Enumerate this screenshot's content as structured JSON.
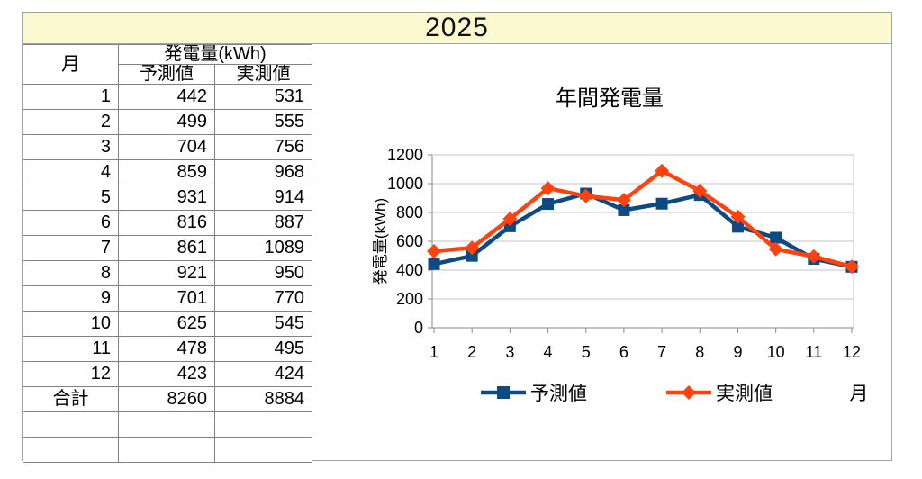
{
  "title": "2025",
  "table": {
    "header": {
      "month": "月",
      "group": "発電量(kWh)",
      "forecast": "予測値",
      "actual": "実測値"
    },
    "rows": [
      [
        "1",
        "442",
        "531"
      ],
      [
        "2",
        "499",
        "555"
      ],
      [
        "3",
        "704",
        "756"
      ],
      [
        "4",
        "859",
        "968"
      ],
      [
        "5",
        "931",
        "914"
      ],
      [
        "6",
        "816",
        "887"
      ],
      [
        "7",
        "861",
        "1089"
      ],
      [
        "8",
        "921",
        "950"
      ],
      [
        "9",
        "701",
        "770"
      ],
      [
        "10",
        "625",
        "545"
      ],
      [
        "11",
        "478",
        "495"
      ],
      [
        "12",
        "423",
        "424"
      ]
    ],
    "total_row": {
      "label": "合計",
      "forecast": "8260",
      "actual": "8884"
    },
    "empty_rows": 2
  },
  "chart_data": {
    "type": "line",
    "title": "年間発電量",
    "xlabel": "月",
    "ylabel": "発電量(kWh)",
    "categories": [
      1,
      2,
      3,
      4,
      5,
      6,
      7,
      8,
      9,
      10,
      11,
      12
    ],
    "series": [
      {
        "name": "予測値",
        "marker": "square",
        "color": "#0d4a84",
        "values": [
          442,
          499,
          704,
          859,
          931,
          816,
          861,
          921,
          701,
          625,
          478,
          423
        ]
      },
      {
        "name": "実測値",
        "marker": "diamond",
        "color": "#ff420e",
        "values": [
          531,
          555,
          756,
          968,
          914,
          887,
          1089,
          950,
          770,
          545,
          495,
          424
        ]
      }
    ],
    "ylim": [
      0,
      1200
    ],
    "ytick_step": 200,
    "grid": true,
    "legend_position": "bottom"
  },
  "colors": {
    "band_bg": "#faf9cf",
    "sheet_border": "#a3a3a3",
    "table_border": "#828282",
    "gridline": "#c4c4c4",
    "axis_line": "#8a8a8a",
    "title_text": "#262626"
  }
}
